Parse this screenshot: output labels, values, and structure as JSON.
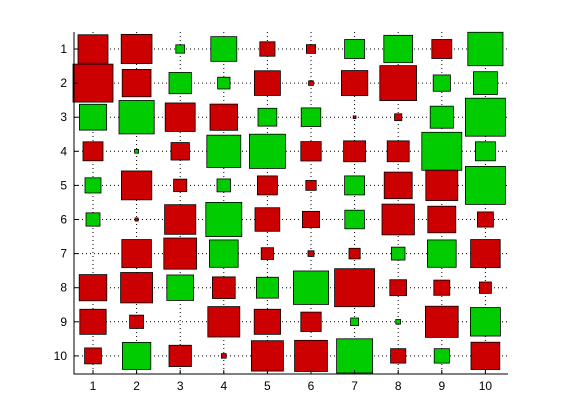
{
  "chart_data": {
    "type": "heatmap",
    "style": "signed square-size matrix plot (Hinton diagram)",
    "title": "",
    "xlabel": "",
    "ylabel": "",
    "x_ticks": [
      "1",
      "2",
      "3",
      "4",
      "5",
      "6",
      "7",
      "8",
      "9",
      "10"
    ],
    "y_ticks": [
      "1",
      "2",
      "3",
      "4",
      "5",
      "6",
      "7",
      "8",
      "9",
      "10"
    ],
    "xlim": [
      0.5,
      10.5
    ],
    "ylim": [
      0.5,
      10.5
    ],
    "y_axis_reversed": true,
    "grid": "dotted",
    "legend": "none",
    "value_encoding": "square side proportional to |value| (max 1 = full cell); red = negative, green = positive",
    "colors": {
      "positive": "#00cc00",
      "negative": "#cc0000",
      "edge": "#000000",
      "grid": "#000000"
    },
    "values": [
      [
        -0.75,
        -0.77,
        0.22,
        0.65,
        -0.38,
        -0.23,
        0.5,
        0.72,
        -0.5,
        0.88
      ],
      [
        -1.0,
        -0.72,
        0.56,
        0.31,
        -0.65,
        -0.12,
        -0.66,
        -0.92,
        0.43,
        0.6
      ],
      [
        0.68,
        0.88,
        -0.75,
        -0.69,
        0.47,
        0.49,
        -0.07,
        -0.18,
        0.58,
        1.0
      ],
      [
        -0.5,
        0.1,
        -0.46,
        0.85,
        0.9,
        -0.51,
        -0.55,
        -0.55,
        1.0,
        0.5
      ],
      [
        0.4,
        -0.76,
        -0.33,
        0.34,
        -0.5,
        -0.26,
        0.5,
        -0.7,
        -0.8,
        1.0
      ],
      [
        0.35,
        -0.08,
        -0.78,
        0.9,
        -0.62,
        -0.43,
        0.49,
        -0.81,
        -0.7,
        -0.4
      ],
      [
        0.0,
        -0.74,
        -0.82,
        0.72,
        -0.31,
        -0.15,
        -0.28,
        0.34,
        0.72,
        -0.74
      ],
      [
        -0.69,
        -0.8,
        0.67,
        -0.57,
        0.55,
        0.88,
        -1.0,
        -0.42,
        -0.4,
        -0.3
      ],
      [
        -0.66,
        -0.35,
        0.0,
        -0.8,
        -0.66,
        -0.51,
        0.2,
        0.12,
        -0.82,
        0.75
      ],
      [
        -0.42,
        0.71,
        -0.56,
        -0.12,
        -0.8,
        -0.82,
        0.9,
        -0.38,
        0.38,
        -0.72
      ]
    ]
  }
}
